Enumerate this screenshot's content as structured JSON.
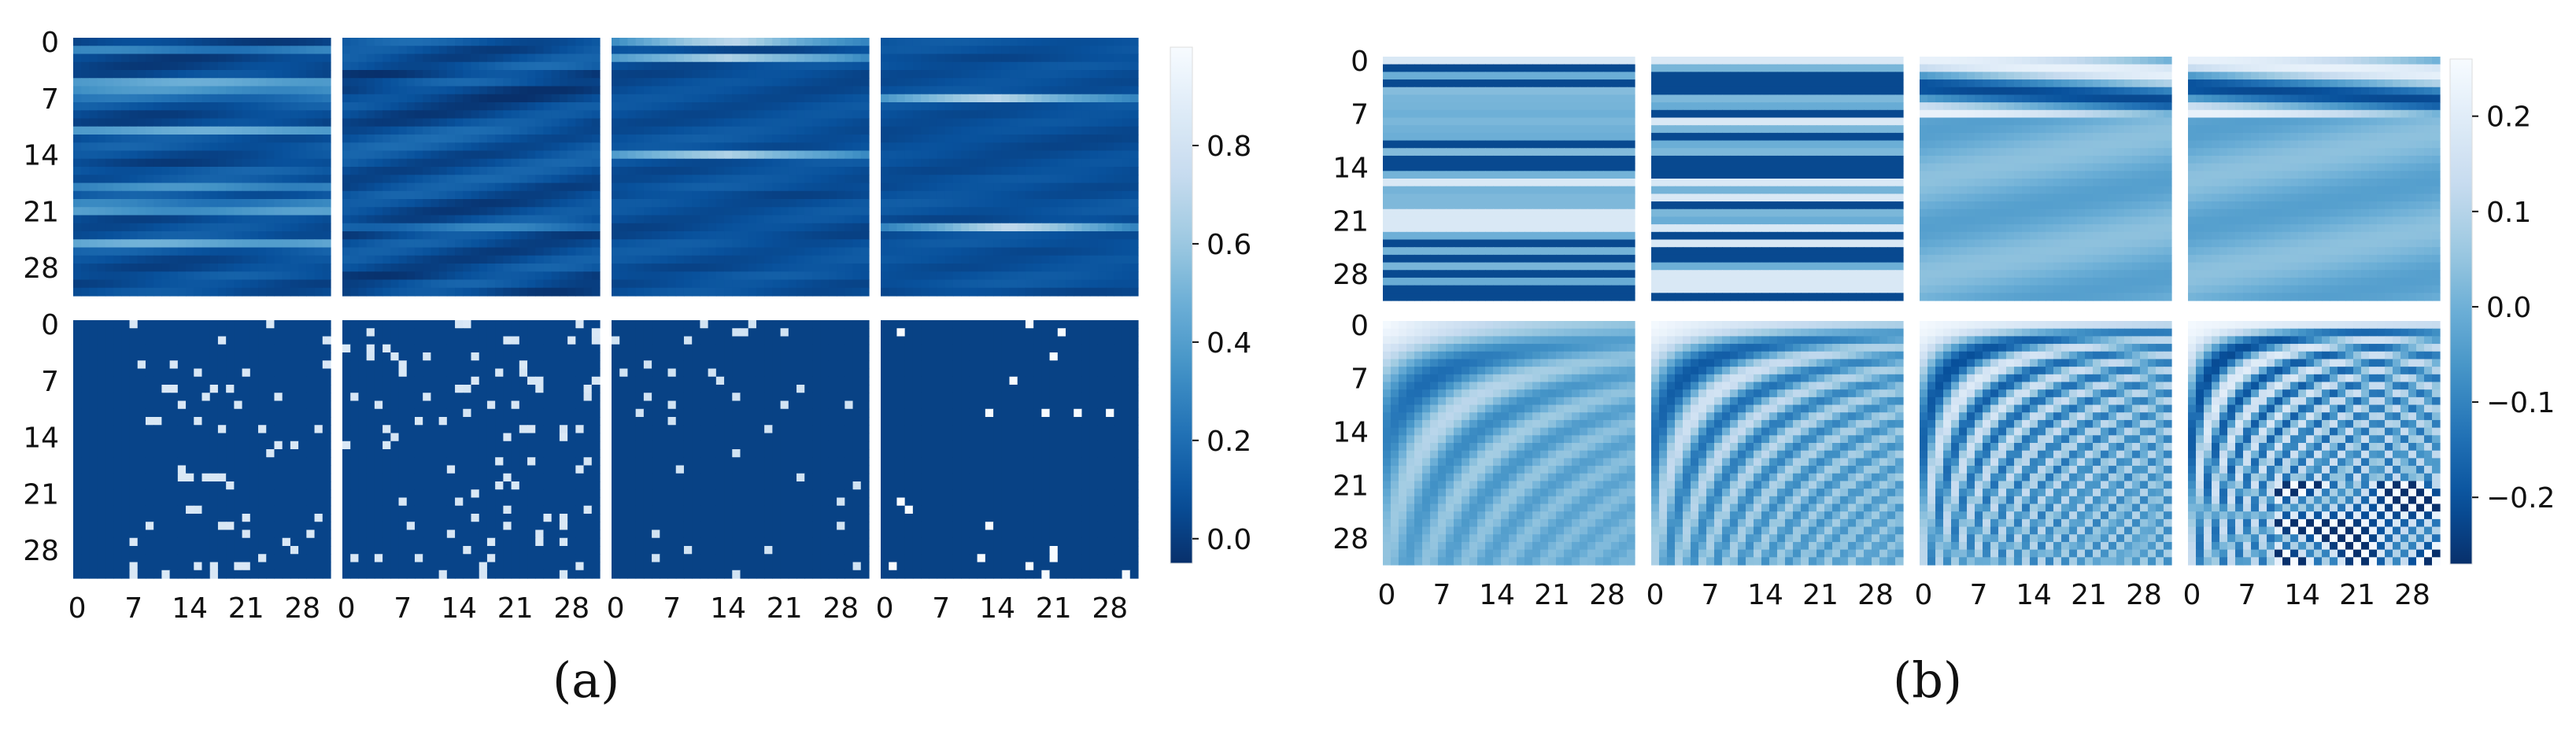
{
  "figure": {
    "caption_a": "(a)",
    "caption_b": "(b)"
  },
  "chart_data": [
    {
      "type": "heatmap",
      "panel": "a",
      "grid_size": 32,
      "rows": 2,
      "cols": 4,
      "x_ticks": [
        "0",
        "7",
        "14",
        "21",
        "28"
      ],
      "y_ticks": [
        "0",
        "7",
        "14",
        "21",
        "28"
      ],
      "colorbar": {
        "min": -0.05,
        "max": 1.0,
        "ticks": [
          "0.0",
          "0.2",
          "0.4",
          "0.6",
          "0.8"
        ],
        "tick_values": [
          0.0,
          0.2,
          0.4,
          0.6,
          0.8
        ]
      },
      "colormap": "Blues_r",
      "colors": {
        "low": "#08306b",
        "high": "#f7fbff"
      }
    },
    {
      "type": "heatmap",
      "panel": "b",
      "grid_size": 32,
      "rows": 2,
      "cols": 4,
      "x_ticks": [
        "0",
        "7",
        "14",
        "21",
        "28"
      ],
      "y_ticks": [
        "0",
        "7",
        "14",
        "21",
        "28"
      ],
      "colorbar": {
        "min": -0.27,
        "max": 0.26,
        "ticks": [
          "0.2",
          "0.1",
          "0.0",
          "−0.1",
          "−0.2"
        ],
        "tick_values": [
          0.2,
          0.1,
          0.0,
          -0.1,
          -0.2
        ]
      },
      "colormap": "Blues_r",
      "colors": {
        "low": "#08306b",
        "high": "#f7fbff"
      }
    }
  ]
}
